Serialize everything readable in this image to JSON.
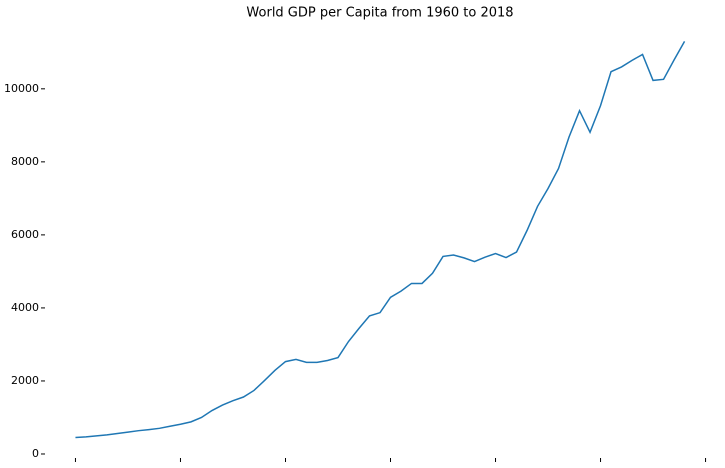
{
  "chart_data": {
    "type": "line",
    "title": "World GDP per Capita from 1960 to 2018",
    "x": [
      1960,
      1961,
      1962,
      1963,
      1964,
      1965,
      1966,
      1967,
      1968,
      1969,
      1970,
      1971,
      1972,
      1973,
      1974,
      1975,
      1976,
      1977,
      1978,
      1979,
      1980,
      1981,
      1982,
      1983,
      1984,
      1985,
      1986,
      1987,
      1988,
      1989,
      1990,
      1991,
      1992,
      1993,
      1994,
      1995,
      1996,
      1997,
      1998,
      1999,
      2000,
      2001,
      2002,
      2003,
      2004,
      2005,
      2006,
      2007,
      2008,
      2009,
      2010,
      2011,
      2012,
      2013,
      2014,
      2015,
      2016,
      2017,
      2018
    ],
    "values": [
      452,
      470,
      495,
      522,
      560,
      600,
      638,
      668,
      703,
      760,
      815,
      880,
      1000,
      1190,
      1340,
      1460,
      1560,
      1740,
      2010,
      2290,
      2530,
      2590,
      2510,
      2510,
      2560,
      2640,
      3080,
      3440,
      3780,
      3870,
      4290,
      4460,
      4670,
      4670,
      4950,
      5410,
      5450,
      5370,
      5270,
      5390,
      5490,
      5380,
      5530,
      6120,
      6780,
      7270,
      7820,
      8680,
      9400,
      8810,
      9540,
      10470,
      10600,
      10780,
      10940,
      10230,
      10260,
      10790,
      11300
    ],
    "color": "#1f77b4",
    "xlim": [
      1957.1,
      2020.9
    ],
    "xticks": [
      1960,
      1970,
      1980,
      1990,
      2000,
      2010,
      2020
    ],
    "ylim": [
      -110,
      11830
    ],
    "yticks": [
      0,
      2000,
      4000,
      6000,
      8000,
      10000
    ]
  }
}
